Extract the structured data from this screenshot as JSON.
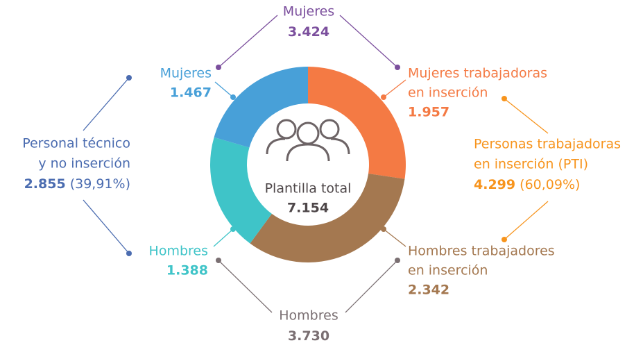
{
  "chart_data": {
    "type": "pie",
    "donut": true,
    "categories": [
      [
        "Mujeres trabajadoras",
        "en inserción"
      ],
      [
        "Hombres trabajadores",
        "en inserción"
      ],
      [
        "Hombres"
      ],
      [
        "Mujeres"
      ]
    ],
    "values": [
      1957,
      2342,
      1388,
      1467
    ],
    "value_labels": [
      "1.957",
      "2.342",
      "1.388",
      "1.467"
    ],
    "colors": [
      "#f47a44",
      "#a47850",
      "#3fc4c8",
      "#48a0d8"
    ],
    "center": {
      "label": "Plantilla total",
      "value": "7.154"
    },
    "groups": [
      {
        "label": [
          "Mujeres"
        ],
        "value": "3.424",
        "color": "#7b4f9d"
      },
      {
        "label": [
          "Hombres"
        ],
        "value": "3.730",
        "color": "#7a6f72"
      },
      {
        "label": [
          "Personal técnico",
          "y no inserción"
        ],
        "value": "2.855",
        "percent": "(39,91%)",
        "color": "#4b6cb0"
      },
      {
        "label": [
          "Personas trabajadoras",
          "en inserción (PTI)"
        ],
        "value": "4.299",
        "percent": "(60,09%)",
        "color": "#f7941d"
      }
    ]
  }
}
